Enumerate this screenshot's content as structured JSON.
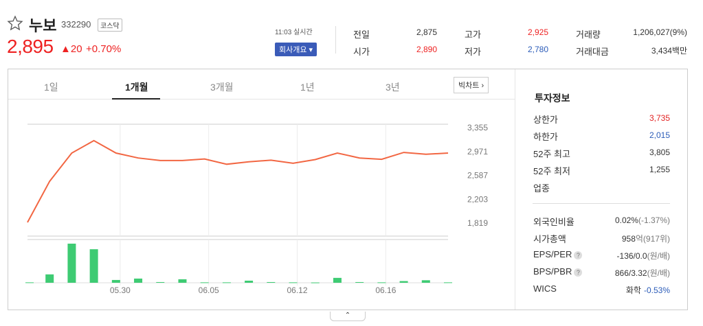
{
  "stock": {
    "name": "누보",
    "code": "332290",
    "market": "코스닥",
    "price": "2,895",
    "change": "▲20",
    "change_pct": "+0.70%",
    "time_label": "11:03 실시간",
    "company_button": "회사개요 ▾"
  },
  "quotes": [
    {
      "label": "전일",
      "value": "2,875",
      "color": "#333333"
    },
    {
      "label": "고가",
      "value": "2,925",
      "color": "#e22222"
    },
    {
      "label": "거래량",
      "value": "1,206,027(9%)",
      "color": "#333333"
    },
    {
      "label": "시가",
      "value": "2,890",
      "color": "#e22222"
    },
    {
      "label": "저가",
      "value": "2,780",
      "color": "#2a5bb8"
    },
    {
      "label": "거래대금",
      "value": "3,434백만",
      "color": "#333333"
    }
  ],
  "tabs": [
    "1일",
    "1개월",
    "3개월",
    "1년",
    "3년"
  ],
  "active_tab": "1개월",
  "bigchart_label": "빅차트",
  "chart_data": {
    "type": "line",
    "price_ticks": [
      3355,
      2971,
      2587,
      2203,
      1819
    ],
    "date_labels": [
      "05.30",
      "06.05",
      "06.12",
      "06.16"
    ],
    "price_series": [
      1819,
      2480,
      2935,
      3135,
      2935,
      2855,
      2815,
      2815,
      2840,
      2755,
      2795,
      2820,
      2770,
      2830,
      2935,
      2855,
      2835,
      2945,
      2915,
      2935
    ],
    "volume_series": [
      0.3,
      6.0,
      28.0,
      24.0,
      2.0,
      3.0,
      0.5,
      2.5,
      0.3,
      0.3,
      1.5,
      0.5,
      0.3,
      0.2,
      3.5,
      0.5,
      0.3,
      1.2,
      1.8,
      0.3
    ],
    "colors": {
      "line": "#f26642",
      "volume": "#3ecb73",
      "grid": "#e8e8e8"
    }
  },
  "investment": {
    "title": "투자정보",
    "rows1": [
      {
        "label": "상한가",
        "value": "3,735",
        "color": "#e22222"
      },
      {
        "label": "하한가",
        "value": "2,015",
        "color": "#2a5bb8"
      },
      {
        "label": "52주 최고",
        "value": "3,805",
        "color": "#333333"
      },
      {
        "label": "52주 최저",
        "value": "1,255",
        "color": "#333333"
      },
      {
        "label": "업종",
        "value": "",
        "color": "#333333"
      }
    ],
    "rows2": [
      {
        "label": "외국인비율",
        "value": "0.02%",
        "sub": "(-1.37%)",
        "help": false
      },
      {
        "label": "시가총액",
        "value": "958",
        "sub": "억(917위)",
        "help": false
      },
      {
        "label": "EPS/PER",
        "value": "-136/0.0",
        "sub": "(원/배)",
        "help": true
      },
      {
        "label": "BPS/PBR",
        "value": "866/3.32",
        "sub": "(원/배)",
        "help": true
      },
      {
        "label": "WICS",
        "value": "화학",
        "sub": "-0.53%",
        "help": false
      }
    ]
  },
  "collapse_icon": "⌃"
}
